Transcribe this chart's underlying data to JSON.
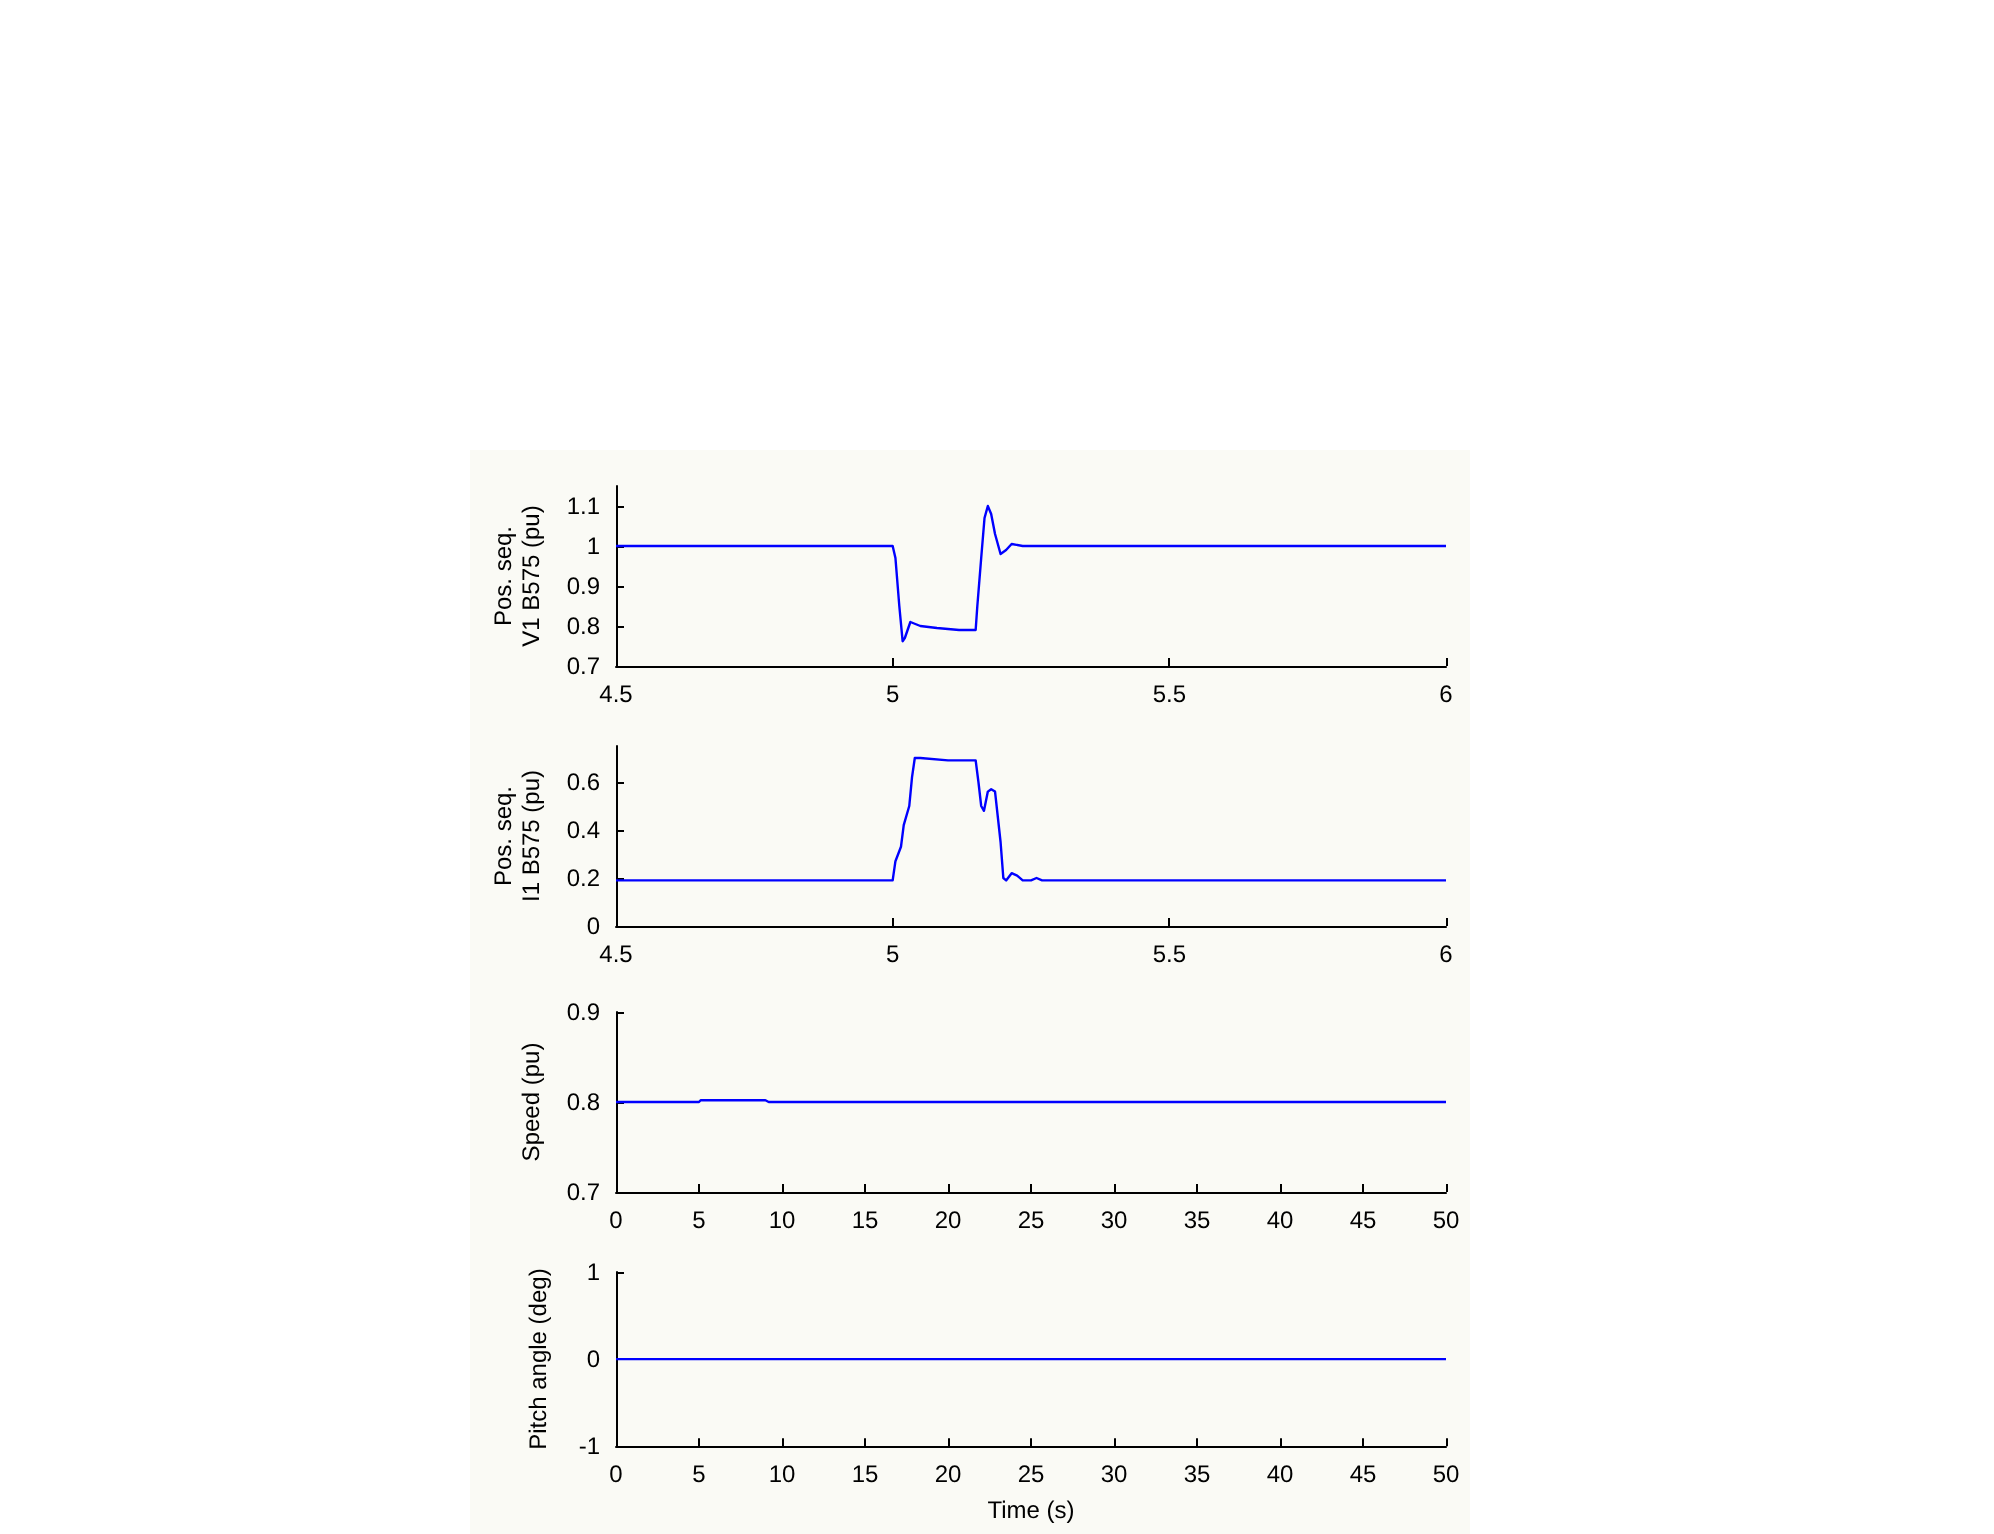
{
  "chart_data": [
    {
      "type": "line",
      "ylabel": "Pos. seq.\nV1 B575 (pu)",
      "xlim": [
        4.5,
        6
      ],
      "xticks": [
        4.5,
        5,
        5.5,
        6
      ],
      "ylim": [
        0.7,
        1.15
      ],
      "yticks": [
        0.7,
        0.8,
        0.9,
        1,
        1.1
      ],
      "grid": false,
      "series": [
        {
          "color": "#0000ff",
          "x": [
            4.5,
            5.0,
            5.005,
            5.012,
            5.018,
            5.022,
            5.027,
            5.032,
            5.05,
            5.08,
            5.12,
            5.15,
            5.153,
            5.16,
            5.166,
            5.172,
            5.178,
            5.185,
            5.195,
            5.205,
            5.215,
            5.235,
            6
          ],
          "values": [
            1,
            1,
            0.97,
            0.85,
            0.762,
            0.77,
            0.79,
            0.81,
            0.8,
            0.795,
            0.79,
            0.79,
            0.85,
            0.97,
            1.07,
            1.1,
            1.08,
            1.03,
            0.98,
            0.99,
            1.005,
            1.0,
            1
          ]
        }
      ]
    },
    {
      "type": "line",
      "ylabel": "Pos. seq.\nI1 B575 (pu)",
      "xlim": [
        4.5,
        6
      ],
      "xticks": [
        4.5,
        5,
        5.5,
        6
      ],
      "ylim": [
        0,
        0.75
      ],
      "yticks": [
        0,
        0.2,
        0.4,
        0.6
      ],
      "grid": false,
      "series": [
        {
          "color": "#0000ff",
          "x": [
            4.5,
            5.0,
            5.005,
            5.015,
            5.02,
            5.03,
            5.035,
            5.04,
            5.05,
            5.1,
            5.15,
            5.155,
            5.16,
            5.165,
            5.172,
            5.178,
            5.185,
            5.195,
            5.2,
            5.205,
            5.215,
            5.225,
            5.235,
            5.25,
            5.26,
            5.27,
            6
          ],
          "values": [
            0.19,
            0.19,
            0.27,
            0.33,
            0.42,
            0.5,
            0.62,
            0.7,
            0.7,
            0.69,
            0.69,
            0.6,
            0.5,
            0.48,
            0.56,
            0.57,
            0.56,
            0.35,
            0.2,
            0.19,
            0.22,
            0.21,
            0.19,
            0.19,
            0.2,
            0.19,
            0.19
          ]
        }
      ]
    },
    {
      "type": "line",
      "ylabel": "Speed (pu)",
      "xlim": [
        0,
        50
      ],
      "xticks": [
        0,
        5,
        10,
        15,
        20,
        25,
        30,
        35,
        40,
        45,
        50
      ],
      "ylim": [
        0.7,
        0.9
      ],
      "yticks": [
        0.7,
        0.8,
        0.9
      ],
      "grid": false,
      "series": [
        {
          "color": "#0000ff",
          "x": [
            0,
            5,
            5.1,
            9,
            9.2,
            50
          ],
          "values": [
            0.8,
            0.8,
            0.802,
            0.802,
            0.8,
            0.8
          ]
        }
      ]
    },
    {
      "type": "line",
      "ylabel": "Pitch angle (deg)",
      "xlabel": "Time (s)",
      "xlim": [
        0,
        50
      ],
      "xticks": [
        0,
        5,
        10,
        15,
        20,
        25,
        30,
        35,
        40,
        45,
        50
      ],
      "ylim": [
        -1,
        1
      ],
      "yticks": [
        -1,
        0,
        1
      ],
      "grid": false,
      "series": [
        {
          "color": "#0000ff",
          "x": [
            0,
            50
          ],
          "values": [
            0,
            0
          ]
        }
      ]
    }
  ]
}
